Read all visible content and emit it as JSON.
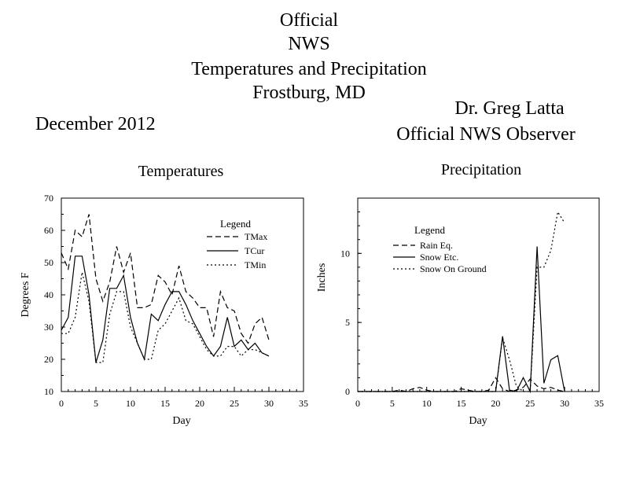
{
  "header": {
    "title_lines": [
      "Official",
      "NWS",
      "Temperatures and Precipitation",
      "Frostburg, MD"
    ],
    "month": "December 2012",
    "observer_name": "Dr. Greg Latta",
    "observer_role": "Official NWS Observer"
  },
  "chart_data": [
    {
      "type": "line",
      "title": "Temperatures",
      "xlabel": "Day",
      "ylabel": "Degrees F",
      "xlim": [
        0,
        35
      ],
      "ylim": [
        10,
        70
      ],
      "xticks": [
        0,
        5,
        10,
        15,
        20,
        25,
        30,
        35
      ],
      "yticks": [
        10,
        20,
        30,
        40,
        50,
        60,
        70
      ],
      "grid": false,
      "legend_title": "Legend",
      "legend_position": "top-right",
      "series": [
        {
          "name": "TMax",
          "style": "dashed",
          "x": [
            0,
            1,
            2,
            3,
            4,
            5,
            6,
            7,
            8,
            9,
            10,
            11,
            12,
            13,
            14,
            15,
            16,
            17,
            18,
            19,
            20,
            21,
            22,
            23,
            24,
            25,
            26,
            27,
            28,
            29,
            30
          ],
          "y": [
            53,
            48,
            60,
            58,
            65,
            45,
            38,
            44,
            55,
            47,
            53,
            36,
            36,
            37,
            46,
            44,
            40,
            49,
            41,
            39,
            36,
            36,
            27,
            41,
            36,
            35,
            28,
            25,
            31,
            33,
            26
          ]
        },
        {
          "name": "TCur",
          "style": "solid",
          "x": [
            0,
            1,
            2,
            3,
            4,
            5,
            6,
            7,
            8,
            9,
            10,
            11,
            12,
            13,
            14,
            15,
            16,
            17,
            18,
            19,
            20,
            21,
            22,
            23,
            24,
            25,
            26,
            27,
            28,
            29,
            30
          ],
          "y": [
            29,
            33,
            52,
            52,
            40,
            19,
            26,
            42,
            42,
            46,
            33,
            25,
            20,
            34,
            32,
            37,
            41,
            41,
            37,
            32,
            28,
            24,
            21,
            24,
            33,
            24,
            26,
            23,
            25,
            22,
            21
          ]
        },
        {
          "name": "TMin",
          "style": "dotted",
          "x": [
            0,
            1,
            2,
            3,
            4,
            5,
            6,
            7,
            8,
            9,
            10,
            11,
            12,
            13,
            14,
            15,
            16,
            17,
            18,
            19,
            20,
            21,
            22,
            23,
            24,
            25,
            26,
            27,
            28,
            29,
            30
          ],
          "y": [
            28,
            28,
            33,
            47,
            38,
            19,
            19,
            34,
            41,
            41,
            30,
            25,
            20,
            20,
            29,
            31,
            35,
            39,
            32,
            31,
            27,
            23,
            21,
            21,
            24,
            24,
            21,
            23,
            23,
            22,
            21
          ]
        }
      ]
    },
    {
      "type": "line",
      "title": "Precipitation",
      "xlabel": "Day",
      "ylabel": "Inches",
      "xlim": [
        0,
        35
      ],
      "ylim": [
        0,
        14
      ],
      "xticks": [
        0,
        5,
        10,
        15,
        20,
        25,
        30,
        35
      ],
      "yticks": [
        0,
        5,
        10
      ],
      "grid": false,
      "legend_title": "Legend",
      "legend_position": "top-left",
      "series": [
        {
          "name": "Rain Eq.",
          "style": "dashed",
          "x": [
            0,
            1,
            2,
            3,
            4,
            5,
            6,
            7,
            8,
            9,
            10,
            11,
            12,
            13,
            14,
            15,
            16,
            17,
            18,
            19,
            20,
            21,
            22,
            23,
            24,
            25,
            26,
            27,
            28,
            29,
            30
          ],
          "y": [
            0,
            0,
            0,
            0,
            0,
            0,
            0.1,
            0,
            0.2,
            0.3,
            0.1,
            0,
            0,
            0,
            0,
            0.2,
            0.1,
            0,
            0,
            0.1,
            1.0,
            0.2,
            0,
            0.1,
            0.3,
            0.9,
            0.4,
            0.2,
            0.3,
            0.1,
            0
          ]
        },
        {
          "name": "Snow Etc.",
          "style": "solid",
          "x": [
            0,
            1,
            2,
            3,
            4,
            5,
            6,
            7,
            8,
            9,
            10,
            11,
            12,
            13,
            14,
            15,
            16,
            17,
            18,
            19,
            20,
            21,
            22,
            23,
            24,
            25,
            26,
            27,
            28,
            29,
            30
          ],
          "y": [
            0,
            0,
            0,
            0,
            0,
            0,
            0,
            0,
            0,
            0,
            0,
            0,
            0,
            0,
            0,
            0,
            0,
            0,
            0,
            0,
            0,
            4.0,
            0.1,
            0,
            1.0,
            0,
            10.5,
            0.6,
            2.3,
            2.6,
            0
          ]
        },
        {
          "name": "Snow On Ground",
          "style": "dotted",
          "x": [
            0,
            1,
            2,
            3,
            4,
            5,
            6,
            7,
            8,
            9,
            10,
            11,
            12,
            13,
            14,
            15,
            16,
            17,
            18,
            19,
            20,
            21,
            22,
            23,
            24,
            25,
            26,
            27,
            28,
            29,
            30
          ],
          "y": [
            0,
            0,
            0,
            0,
            0,
            0,
            0,
            0,
            0,
            0,
            0,
            0,
            0,
            0,
            0,
            0,
            0,
            0,
            0,
            0,
            0,
            3.9,
            2.3,
            0.4,
            0,
            0,
            9.0,
            9.0,
            10.2,
            13.0,
            12.2
          ]
        }
      ]
    }
  ]
}
